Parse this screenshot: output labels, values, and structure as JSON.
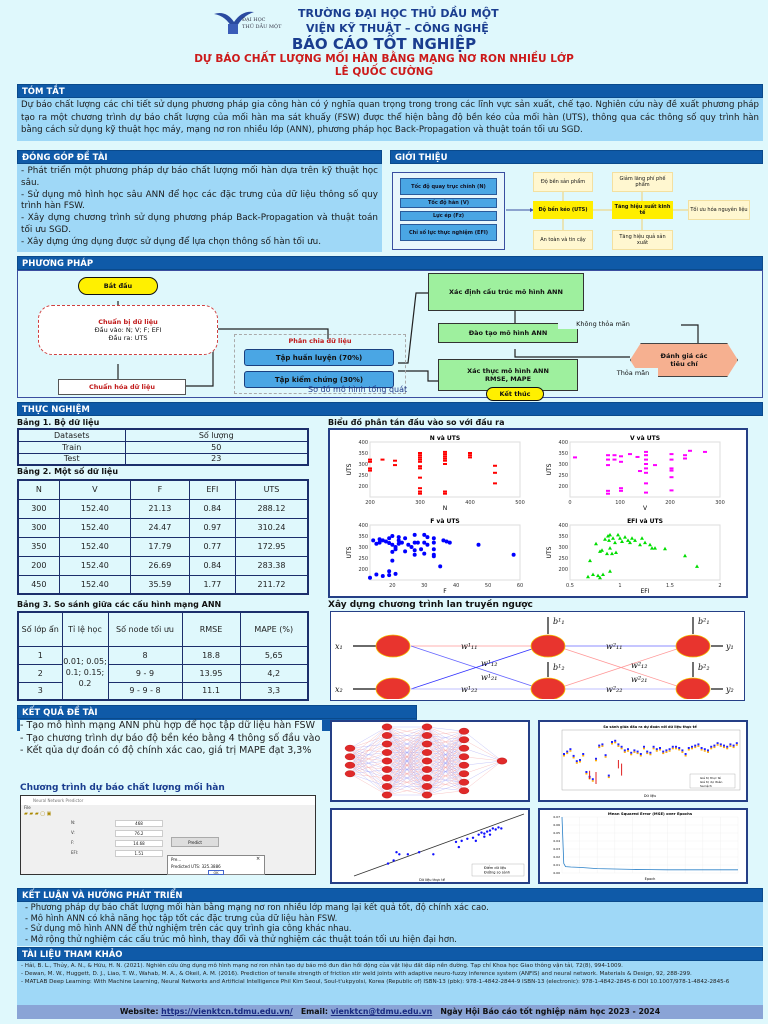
{
  "header": {
    "university": "TRƯỜNG ĐẠI HỌC THỦ DẦU MỘT",
    "institute": "VIỆN KỸ THUẬT – CÔNG NGHỆ",
    "logo_text_top": "ĐẠI HỌC",
    "logo_text_bottom": "THỦ DẦU MỘT",
    "report_title": "BÁO CÁO TỐT NGHIỆP",
    "thesis_title": "DỰ BÁO CHẤT LƯỢNG MỐI HÀN BẰNG MẠNG NƠ RON NHIỀU LỚP",
    "author": "LÊ QUỐC CƯỜNG"
  },
  "abstract": {
    "heading": "TÓM TẮT",
    "text": "Dự báo chất lượng các chi tiết sử dụng phương pháp gia công hàn có ý nghĩa quan trọng trong trong các lĩnh vực sản xuất, chế tạo. Nghiên cứu này đề xuất phương pháp tạo ra một chương trình dự báo chất lượng của mối hàn ma sát khuấy (FSW) được thể hiện bằng độ bền kéo của mối hàn (UTS), thông qua các thông số quy trình hàn bằng cách sử dụng kỹ thuật học máy, mạng nơ ron nhiều lớp (ANN), phương pháp học Back-Propagation và thuật toán tối ưu SGD."
  },
  "contributions": {
    "heading": "ĐÓNG GÓP ĐỀ TÀI",
    "items": [
      " - Phát triển một phương pháp dự báo chất lượng mối hàn dựa trên kỹ thuật học sâu.",
      " - Sử dụng mô hình học sâu ANN để học các đặc trưng của dữ liệu thông số quy trình hàn FSW.",
      " - Xây dựng chương trình sử dụng phương pháp Back-Propagation và thuật toán tối ưu SGD.",
      " - Xây dựng ứng dụng được sử dụng để lựa chọn thông số hàn tối ưu."
    ]
  },
  "intro": {
    "heading": "GIỚI THIỆU",
    "inputs": [
      "Tốc độ quay trục chính (N)",
      "Tốc độ hàn (V)",
      "Lực ép (Fz)",
      "Chỉ số lực thực nghiệm (EFI)"
    ],
    "center1": "Độ bền kéo (UTS)",
    "center2": "Tăng hiệu suất kinh tế",
    "top1": "Độ bền sản phẩm",
    "bottom1": "An toàn và tin cậy",
    "top2": "Giảm lãng phí phế phẩm",
    "bottom2": "Tăng hiệu quả sản xuất",
    "right": "Tối ưu hóa nguyên liệu"
  },
  "method": {
    "heading": "PHƯƠNG PHÁP",
    "start": "Bắt đầu",
    "prep_title": "Chuẩn bị dữ liệu",
    "prep_in": "Đầu vào: N; V; F; EFI",
    "prep_out": "Đầu ra: UTS",
    "normalize": "Chuẩn hóa dữ liệu",
    "split_title": "Phân chia dữ liệu",
    "train_set": "Tập huấn luyện (70%)",
    "test_set": "Tập kiểm chứng (30%)",
    "define": "Xác định cấu trúc mô hình ANN",
    "train": "Đào tạo mô hình ANN",
    "validate": "Xác thực mô hình ANN RMSE, MAPE",
    "evaluate": "Đánh giá các tiêu chí",
    "not_ok": "Không thỏa mãn",
    "ok": "Thỏa mãn",
    "end": "Kết thúc",
    "caption": "Sơ đồ mô hình tổng quát"
  },
  "experiment": {
    "heading": "THỰC NGHIỆM",
    "table1": {
      "caption": "Bảng 1. Bộ dữ liệu",
      "headers": [
        "Datasets",
        "Số lượng"
      ],
      "rows": [
        [
          "Train",
          "50"
        ],
        [
          "Test",
          "23"
        ]
      ]
    },
    "table2": {
      "caption": "Bảng 2. Một số dữ liệu",
      "headers": [
        "N",
        "V",
        "F",
        "EFI",
        "UTS"
      ],
      "rows": [
        [
          "300",
          "152.40",
          "21.13",
          "0.84",
          "288.12"
        ],
        [
          "300",
          "152.40",
          "24.47",
          "0.97",
          "310.24"
        ],
        [
          "350",
          "152.40",
          "17.79",
          "0.77",
          "172.95"
        ],
        [
          "200",
          "152.40",
          "26.69",
          "0.84",
          "283.38"
        ],
        [
          "450",
          "152.40",
          "35.59",
          "1.77",
          "211.72"
        ]
      ]
    },
    "table3": {
      "caption": "Bảng 3. So sánh giữa các cấu hình mạng ANN",
      "headers": [
        "Số lớp ẩn",
        "Tỉ lệ học",
        "Số node tối ưu",
        "RMSE",
        "MAPE (%)"
      ],
      "learning_rates": "0.01; 0.05; 0.1; 0.15; 0.2",
      "rows": [
        [
          "1",
          "8",
          "18.8",
          "5,65"
        ],
        [
          "2",
          "9 - 9",
          "13.95",
          "4,2"
        ],
        [
          "3",
          "9 - 9 - 8",
          "11.1",
          "3,3"
        ]
      ]
    },
    "scatter_caption": "Biểu đồ phân tán đầu vào so với đầu ra",
    "bp_caption": "Xây dựng chương trình lan truyền ngược",
    "bp_labels": {
      "x1": "x₁",
      "x2": "x₂",
      "y1": "y₁",
      "y2": "y₂",
      "w11a": "w¹₁₁",
      "w12a": "w¹₁₂",
      "w21a": "w¹₂₁",
      "w22a": "w¹₂₂",
      "w11b": "w²₁₁",
      "w12b": "w²₁₂",
      "w21b": "w²₂₁",
      "w22b": "w²₂₂",
      "b11": "b¹₁",
      "b12": "b¹₂",
      "b21": "b²₁",
      "b22": "b²₂"
    }
  },
  "chart_data": [
    {
      "type": "scatter",
      "title": "N và UTS",
      "xlabel": "N",
      "ylabel": "UTS",
      "xlim": [
        200,
        500
      ],
      "ylim": [
        150,
        400
      ],
      "xticks": [
        "200",
        "300",
        "400",
        "500"
      ],
      "yticks": [
        "200",
        "250",
        "300",
        "350",
        "400"
      ],
      "color": "#ff0000",
      "points": [
        [
          200,
          320
        ],
        [
          200,
          310
        ],
        [
          200,
          280
        ],
        [
          200,
          270
        ],
        [
          225,
          320
        ],
        [
          250,
          315
        ],
        [
          250,
          295
        ],
        [
          300,
          350
        ],
        [
          300,
          340
        ],
        [
          300,
          330
        ],
        [
          300,
          320
        ],
        [
          300,
          310
        ],
        [
          300,
          290
        ],
        [
          300,
          280
        ],
        [
          300,
          238
        ],
        [
          300,
          190
        ],
        [
          300,
          175
        ],
        [
          300,
          165
        ],
        [
          350,
          355
        ],
        [
          350,
          345
        ],
        [
          350,
          335
        ],
        [
          350,
          325
        ],
        [
          350,
          315
        ],
        [
          350,
          300
        ],
        [
          350,
          175
        ],
        [
          350,
          165
        ],
        [
          400,
          350
        ],
        [
          400,
          340
        ],
        [
          400,
          330
        ],
        [
          450,
          292
        ],
        [
          450,
          260
        ],
        [
          450,
          212
        ]
      ]
    },
    {
      "type": "scatter",
      "title": "V và UTS",
      "xlabel": "V",
      "ylabel": "UTS",
      "xlim": [
        0,
        300
      ],
      "ylim": [
        150,
        400
      ],
      "xticks": [
        "0",
        "100",
        "200",
        "300"
      ],
      "yticks": [
        "200",
        "250",
        "300",
        "350",
        "400"
      ],
      "color": "#ff00ff",
      "points": [
        [
          10,
          330
        ],
        [
          76,
          340
        ],
        [
          76,
          320
        ],
        [
          76,
          295
        ],
        [
          76,
          178
        ],
        [
          76,
          165
        ],
        [
          89,
          340
        ],
        [
          89,
          320
        ],
        [
          102,
          335
        ],
        [
          102,
          310
        ],
        [
          102,
          190
        ],
        [
          102,
          178
        ],
        [
          120,
          345
        ],
        [
          135,
          332
        ],
        [
          140,
          268
        ],
        [
          152,
          355
        ],
        [
          152,
          340
        ],
        [
          152,
          320
        ],
        [
          152,
          300
        ],
        [
          152,
          280
        ],
        [
          152,
          260
        ],
        [
          152,
          212
        ],
        [
          152,
          170
        ],
        [
          170,
          295
        ],
        [
          203,
          345
        ],
        [
          203,
          320
        ],
        [
          203,
          280
        ],
        [
          203,
          270
        ],
        [
          203,
          240
        ],
        [
          203,
          180
        ],
        [
          230,
          340
        ],
        [
          230,
          325
        ],
        [
          240,
          360
        ],
        [
          270,
          355
        ]
      ]
    },
    {
      "type": "scatter",
      "title": "F và UTS",
      "xlabel": "F",
      "ylabel": "UTS",
      "xlim": [
        13,
        60
      ],
      "ylim": [
        150,
        400
      ],
      "xticks": [
        "20",
        "30",
        "40",
        "50",
        "60"
      ],
      "yticks": [
        "200",
        "250",
        "300",
        "350",
        "400"
      ],
      "color": "#0000ff",
      "points": [
        [
          13,
          160
        ],
        [
          14,
          330
        ],
        [
          15,
          315
        ],
        [
          15,
          175
        ],
        [
          16,
          335
        ],
        [
          16,
          320
        ],
        [
          17,
          330
        ],
        [
          17,
          168
        ],
        [
          18,
          325
        ],
        [
          19,
          340
        ],
        [
          19,
          318
        ],
        [
          19,
          190
        ],
        [
          19,
          172
        ],
        [
          20,
          350
        ],
        [
          20,
          310
        ],
        [
          20,
          278
        ],
        [
          20,
          238
        ],
        [
          21,
          300
        ],
        [
          21,
          290
        ],
        [
          21,
          178
        ],
        [
          22,
          345
        ],
        [
          22,
          330
        ],
        [
          22,
          315
        ],
        [
          23,
          320
        ],
        [
          24,
          340
        ],
        [
          24,
          280
        ],
        [
          25,
          310
        ],
        [
          26,
          300
        ],
        [
          27,
          355
        ],
        [
          27,
          320
        ],
        [
          27,
          285
        ],
        [
          27,
          265
        ],
        [
          28,
          320
        ],
        [
          29,
          290
        ],
        [
          30,
          355
        ],
        [
          30,
          320
        ],
        [
          30,
          270
        ],
        [
          31,
          345
        ],
        [
          31,
          310
        ],
        [
          33,
          340
        ],
        [
          33,
          320
        ],
        [
          33,
          290
        ],
        [
          33,
          265
        ],
        [
          33,
          258
        ],
        [
          35,
          212
        ],
        [
          36,
          330
        ],
        [
          37,
          325
        ],
        [
          38,
          320
        ],
        [
          47,
          310
        ],
        [
          58,
          265
        ]
      ]
    },
    {
      "type": "scatter",
      "title": "EFI và UTS",
      "xlabel": "EFI",
      "ylabel": "UTS",
      "xlim": [
        0.5,
        2
      ],
      "ylim": [
        150,
        400
      ],
      "xticks": [
        "0.5",
        "1",
        "1.5",
        "2"
      ],
      "yticks": [
        "200",
        "250",
        "300",
        "350",
        "400"
      ],
      "color": "#00dd00",
      "points": [
        [
          0.68,
          165
        ],
        [
          0.7,
          238
        ],
        [
          0.73,
          175
        ],
        [
          0.76,
          315
        ],
        [
          0.78,
          170
        ],
        [
          0.8,
          280
        ],
        [
          0.8,
          160
        ],
        [
          0.82,
          285
        ],
        [
          0.83,
          175
        ],
        [
          0.85,
          335
        ],
        [
          0.87,
          270
        ],
        [
          0.88,
          350
        ],
        [
          0.89,
          330
        ],
        [
          0.9,
          355
        ],
        [
          0.9,
          295
        ],
        [
          0.9,
          190
        ],
        [
          0.92,
          270
        ],
        [
          0.93,
          340
        ],
        [
          0.95,
          320
        ],
        [
          0.96,
          275
        ],
        [
          0.98,
          355
        ],
        [
          1.0,
          340
        ],
        [
          1.02,
          325
        ],
        [
          1.05,
          345
        ],
        [
          1.08,
          330
        ],
        [
          1.1,
          320
        ],
        [
          1.12,
          340
        ],
        [
          1.15,
          330
        ],
        [
          1.2,
          310
        ],
        [
          1.22,
          340
        ],
        [
          1.25,
          320
        ],
        [
          1.3,
          310
        ],
        [
          1.32,
          295
        ],
        [
          1.35,
          295
        ],
        [
          1.45,
          292
        ],
        [
          1.65,
          260
        ],
        [
          1.77,
          212
        ]
      ]
    },
    {
      "type": "line",
      "title": "So sánh giữa đầu ra dự đoán với dữ liệu thực tế",
      "xlabel": "Dữ liệu",
      "ylabel": "Giá trị",
      "legend": [
        "Giá trị thực tế",
        "Giá trị dự đoán",
        "Sai lệch"
      ]
    },
    {
      "type": "scatter",
      "title": "",
      "xlabel": "Dữ liệu thực tế",
      "ylabel": "Dự đoán",
      "xlim": [
        100,
        400
      ],
      "ylim": [
        100,
        400
      ],
      "legend": [
        "Điểm dữ liệu",
        "Đường so sánh"
      ]
    },
    {
      "type": "line",
      "title": "Mean Squared Error (MSE) over Epochs",
      "xlabel": "Epoch",
      "ylabel": "MSE",
      "xlim": [
        0,
        10000
      ],
      "ylim": [
        0,
        0.07
      ],
      "x": [
        0,
        100,
        200,
        500,
        1000,
        2000,
        3000,
        4000,
        5000,
        6000,
        7000,
        8000,
        9000,
        10000
      ],
      "values": [
        0.07,
        0.012,
        0.008,
        0.0075,
        0.007,
        0.0055,
        0.005,
        0.0045,
        0.0042,
        0.004,
        0.004,
        0.004,
        0.004,
        0.004
      ]
    }
  ],
  "results": {
    "heading": "KẾT QUẢ ĐỀ TÀI",
    "items": [
      "- Tạo mô hình mạng ANN phù hợp để học tập dữ liệu hàn FSW",
      "- Tạo chương trình dự báo độ bền kéo bằng 4 thông số đầu vào",
      "- Kết qủa dự đoán có độ chính xác cao, giá trị MAPE đạt 3,3%"
    ],
    "app_caption": "Chương trình dự báo chất lượng mối hàn",
    "app": {
      "window_title": "Neural Network Predictor",
      "menu": "File",
      "fields": [
        {
          "label": "N:",
          "value": "468"
        },
        {
          "label": "V:",
          "value": "76.2"
        },
        {
          "label": "F:",
          "value": "14.68"
        },
        {
          "label": "EFI:",
          "value": "1.51"
        }
      ],
      "predict_label": "Predict",
      "dialog_title": "Pre...",
      "dialog_text": "Predicted UTS: 325.3886",
      "ok_label": "OK"
    }
  },
  "conclusion": {
    "heading": "KẾT LUẬN VÀ HƯỚNG PHÁT TRIỂN",
    "items": [
      "- Phương pháp dự báo chất lượng mối hàn bằng mạng nơ ron nhiều lớp mang lại kết quả tốt, độ chính xác cao.",
      "- Mô hình ANN có khả năng học tập tốt các đặc trưng của dữ liệu hàn FSW.",
      "- Sử dụng mô hình ANN để thử nghiệm trên các quy trình gia công khác nhau.",
      "- Mở rộng thử nghiệm các cấu trúc mô hình, thay đổi và thử nghiệm các thuật toán tối ưu hiện đại hơn."
    ]
  },
  "references": {
    "heading": "TÀI LIỆU THAM KHẢO",
    "items": [
      "- Hải, B. L., Thủy, A. N., & Hữu, H. N. (2021). Nghiên cứu ứng dụng mô hình mạng nơ ron nhân tạo dự báo mô đun đàn hồi động của vật liệu đất đắp nền đường. Tạp chí Khoa học Giao thông vận tải, 72(8), 994-1009.",
      "- Dewan, M. W., Huggett, D. J., Liao, T. W., Wahab, M. A., & Okeil, A. M. (2016). Prediction of tensile strength of friction stir weld joints with adaptive neuro-fuzzy inference system (ANFIS) and neural network. Materials & Design, 92, 288-299.",
      "- MATLAB Deep Learning: With Machine Learning, Neural Networks and Artificial Intelligence Phil Kim Seoul, Soul-t'ukpyolsi, Korea (Republic of) ISBN-13 (pbk): 978-1-4842-2844-9 ISBN-13 (electronic): 978-1-4842-2845-6 DOI 10.1007/978-1-4842-2845-6"
    ]
  },
  "footer": {
    "website_label": "Website: ",
    "website": "https://vienktcn.tdmu.edu.vn/",
    "email_label": "Email: ",
    "email": "vienktcn@tdmu.edu.vn",
    "event": "Ngày Hội Báo cáo tốt nghiệp năm học 2023 - 2024"
  }
}
